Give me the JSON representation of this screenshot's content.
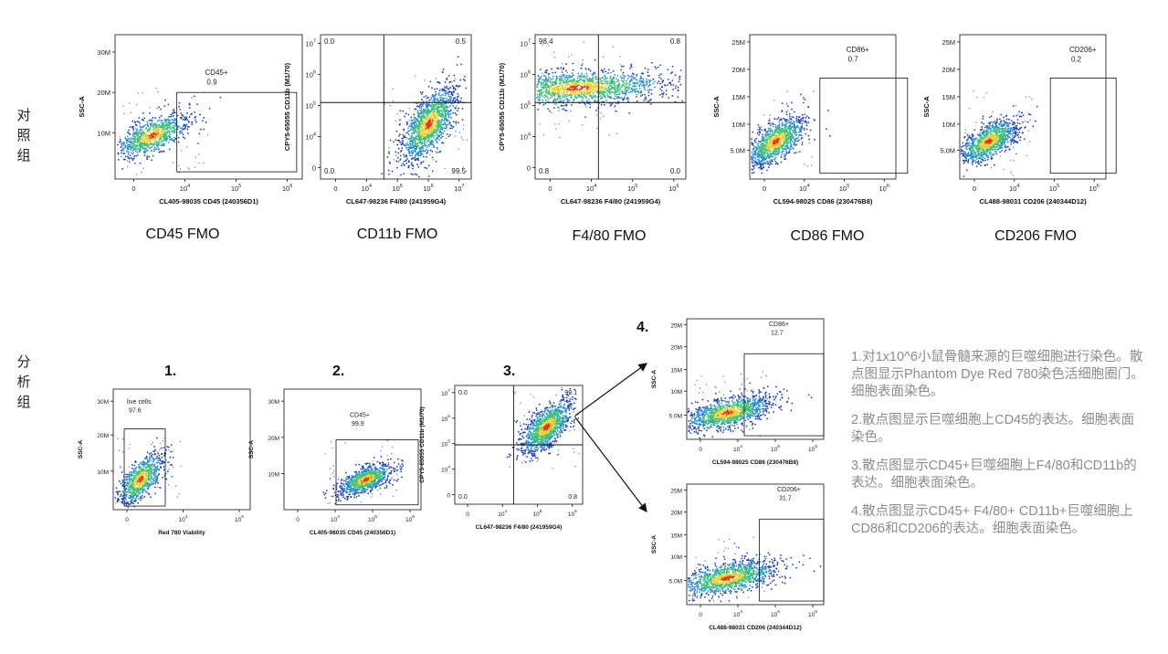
{
  "section_labels": {
    "control": [
      "对",
      "照",
      "组"
    ],
    "analysis": [
      "分",
      "析",
      "组"
    ]
  },
  "fmo_labels": [
    "CD45 FMO",
    "CD11b FMO",
    "F4/80 FMO",
    "CD86 FMO",
    "CD206 FMO"
  ],
  "step_labels": [
    "1.",
    "2.",
    "3.",
    "4."
  ],
  "descriptions": [
    "1.对1x10^6小鼠骨髓来源的巨噬细胞进行染色。散点图显示Phantom Dye Red 780染色活细胞圈门。细胞表面染色。",
    "2.散点图显示巨噬细胞上CD45的表达。细胞表面染色。",
    "3.散点图显示CD45+巨噬细胞上F4/80和CD11b的表达。细胞表面染色。",
    "4.散点图显示CD45+ F4/80+ CD11b+巨噬细胞上CD86和CD206的表达。细胞表面染色。"
  ],
  "colors": {
    "density_low": "#1f3fbf",
    "density_mid": "#3fc07f",
    "density_high": "#e83020",
    "gate": "#111111"
  },
  "chart_data": [
    {
      "id": "c1",
      "type": "scatter",
      "xlabel": "CL405-98035 CD45 (240356D1)",
      "ylabel": "SSC-A",
      "yticks": [
        "10M",
        "20M",
        "30M"
      ],
      "xticks": [
        "0",
        "10^4",
        "10^5",
        "10^6"
      ],
      "gate": {
        "label": "CD45+",
        "value": "0.9"
      }
    },
    {
      "id": "c2",
      "type": "scatter",
      "xlabel": "CL647-98236 F4/80 (241959G4)",
      "ylabel": "CPY5-65055 CD11b (M1/70)",
      "yticks": [
        "0",
        "10^4",
        "10^5",
        "10^6",
        "10^7"
      ],
      "xticks": [
        "0",
        "10^4",
        "10^5",
        "10^6",
        "10^7"
      ],
      "quadrants": [
        "0.0",
        "0.5",
        "0.0",
        "99.5"
      ]
    },
    {
      "id": "c3",
      "type": "scatter",
      "xlabel": "CL647-98236 F4/80 (241959G4)",
      "ylabel": "CPY5-65055 CD11b (M1/70)",
      "yticks": [
        "0",
        "10^4",
        "10^5",
        "10^6",
        "10^7"
      ],
      "xticks": [
        "0",
        "10^4",
        "10^5",
        "10^6"
      ],
      "quadrants": [
        "98.4",
        "0.8",
        "0.8",
        "0.0"
      ]
    },
    {
      "id": "c4",
      "type": "scatter",
      "xlabel": "CL594-98025 CD86 (230476B8)",
      "ylabel": "SSC-A",
      "yticks": [
        "5.0M",
        "10M",
        "15M",
        "20M",
        "25M"
      ],
      "xticks": [
        "0",
        "10^4",
        "10^5",
        "10^6"
      ],
      "gate": {
        "label": "CD86+",
        "value": "0.7"
      }
    },
    {
      "id": "c5",
      "type": "scatter",
      "xlabel": "CL488-98031 CD206 (240344D12)",
      "ylabel": "SSC-A",
      "yticks": [
        "5.0M",
        "10M",
        "15M",
        "20M",
        "25M"
      ],
      "xticks": [
        "0",
        "10^4",
        "10^5",
        "10^6"
      ],
      "gate": {
        "label": "CD206+",
        "value": "0.2"
      }
    },
    {
      "id": "a1",
      "type": "scatter",
      "xlabel": "Red 780 Viability",
      "ylabel": "SSC-A",
      "yticks": [
        "10M",
        "20M",
        "30M"
      ],
      "xticks": [
        "0",
        "10^4",
        "10^5"
      ],
      "gate": {
        "label": "live cells",
        "value": "97.6"
      }
    },
    {
      "id": "a2",
      "type": "scatter",
      "xlabel": "CL405-98035 CD45 (240356D1)",
      "ylabel": "SSC-A",
      "yticks": [
        "10M",
        "20M",
        "30M"
      ],
      "xticks": [
        "0",
        "10^4",
        "10^5",
        "10^6"
      ],
      "gate": {
        "label": "CD45+",
        "value": "99.9"
      }
    },
    {
      "id": "a3",
      "type": "scatter",
      "xlabel": "CL647-98236 F4/80 (241959G4)",
      "ylabel": "CPY5-65055 CD11b (M1/70)",
      "yticks": [
        "0",
        "10^4",
        "10^5",
        "10^6",
        "10^7"
      ],
      "xticks": [
        "0",
        "10^4",
        "10^5",
        "10^6"
      ],
      "quadrants": [
        "0.0",
        "99.1",
        "0.0",
        "0.8"
      ]
    },
    {
      "id": "a4",
      "type": "scatter",
      "xlabel": "CL594-98025 CD86 (230476B8)",
      "ylabel": "SSC-A",
      "yticks": [
        "5.0M",
        "10M",
        "15M",
        "20M",
        "25M"
      ],
      "xticks": [
        "0",
        "10^4",
        "10^5",
        "10^6"
      ],
      "gate": {
        "label": "CD86+",
        "value": "12.7"
      }
    },
    {
      "id": "a5",
      "type": "scatter",
      "xlabel": "CL488-98031 CD206 (240344D12)",
      "ylabel": "SSC-A",
      "yticks": [
        "5.0M",
        "10M",
        "15M",
        "20M",
        "25M"
      ],
      "xticks": [
        "0",
        "10^4",
        "10^5",
        "10^6"
      ],
      "gate": {
        "label": "CD206+",
        "value": "31.7"
      }
    }
  ]
}
